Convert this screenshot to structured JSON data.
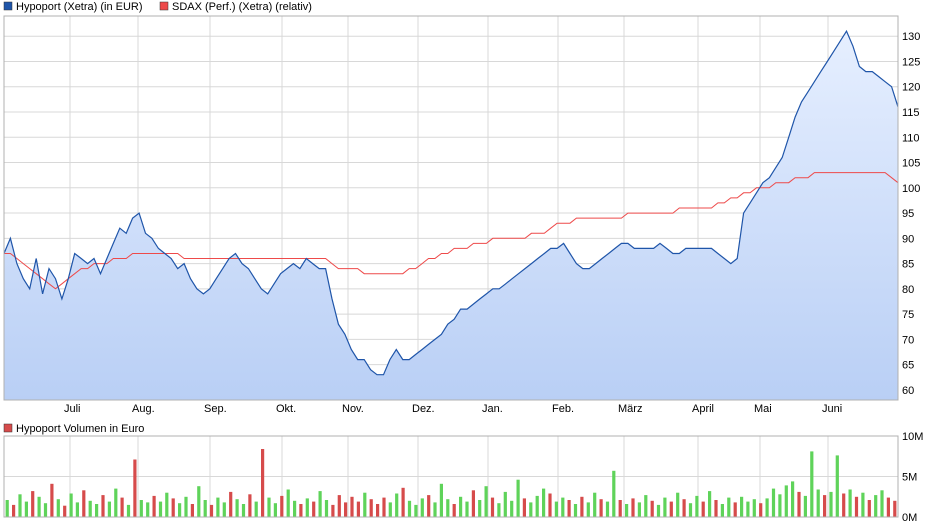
{
  "colors": {
    "primary_line": "#1f55a9",
    "primary_fill_top": "#e6efff",
    "primary_fill_bottom": "#b9cff5",
    "compare_line": "#ee4a4a",
    "volume_up": "#5fd35a",
    "volume_down": "#d64b4b",
    "grid": "#d8d8d8",
    "frame": "#b0b0b0"
  },
  "legend": {
    "primary": "Hypoport (Xetra) (in EUR)",
    "compare": "SDAX (Perf.) (Xetra) (relativ)"
  },
  "volume_legend": "Hypoport Volumen in Euro",
  "chart_data": [
    {
      "type": "line",
      "name": "price",
      "x_labels": [
        "Juli",
        "Aug.",
        "Sep.",
        "Okt.",
        "Nov.",
        "Dez.",
        "Jan.",
        "Feb.",
        "März",
        "April",
        "Mai",
        "Juni"
      ],
      "y_ticks": [
        60,
        65,
        70,
        75,
        80,
        85,
        90,
        95,
        100,
        105,
        110,
        115,
        120,
        125,
        130
      ],
      "ylim": [
        58,
        134
      ],
      "grid": true,
      "legend_position": "top-left",
      "series": [
        {
          "name": "Hypoport (Xetra) (in EUR)",
          "values": [
            87,
            90,
            85,
            82,
            80,
            86,
            79,
            84,
            82,
            78,
            82,
            87,
            86,
            85,
            86,
            83,
            86,
            89,
            92,
            91,
            94,
            95,
            91,
            90,
            88,
            87,
            86,
            84,
            85,
            82,
            80,
            79,
            80,
            82,
            84,
            86,
            87,
            85,
            84,
            82,
            80,
            79,
            81,
            83,
            84,
            85,
            84,
            86,
            85,
            84,
            84,
            78,
            73,
            71,
            68,
            66,
            66,
            64,
            63,
            63,
            66,
            68,
            66,
            66,
            67,
            68,
            69,
            70,
            71,
            73,
            74,
            76,
            76,
            77,
            78,
            79,
            80,
            80,
            81,
            82,
            83,
            84,
            85,
            86,
            87,
            88,
            88,
            89,
            87,
            85,
            84,
            84,
            85,
            86,
            87,
            88,
            89,
            89,
            88,
            88,
            88,
            88,
            89,
            88,
            87,
            87,
            88,
            88,
            88,
            88,
            88,
            87,
            86,
            85,
            86,
            95,
            97,
            99,
            101,
            102,
            104,
            106,
            110,
            114,
            117,
            119,
            121,
            123,
            125,
            127,
            129,
            131,
            128,
            124,
            123,
            123,
            122,
            121,
            120,
            116
          ]
        },
        {
          "name": "SDAX (Perf.) (Xetra) (relativ)",
          "values": [
            87,
            87,
            86,
            85,
            84,
            83,
            82,
            81,
            80,
            81,
            82,
            83,
            84,
            84,
            85,
            85,
            85,
            86,
            86,
            86,
            87,
            87,
            87,
            87,
            87,
            87,
            87,
            87,
            86,
            86,
            86,
            86,
            86,
            86,
            86,
            86,
            86,
            86,
            86,
            86,
            86,
            86,
            86,
            86,
            86,
            86,
            86,
            86,
            86,
            86,
            86,
            85,
            84,
            84,
            84,
            84,
            83,
            83,
            83,
            83,
            83,
            83,
            83,
            84,
            84,
            85,
            86,
            86,
            87,
            87,
            88,
            88,
            88,
            89,
            89,
            89,
            90,
            90,
            90,
            90,
            90,
            90,
            91,
            91,
            91,
            92,
            93,
            93,
            93,
            94,
            94,
            94,
            94,
            94,
            94,
            94,
            94,
            95,
            95,
            95,
            95,
            95,
            95,
            95,
            95,
            96,
            96,
            96,
            96,
            96,
            96,
            97,
            97,
            98,
            98,
            99,
            99,
            100,
            100,
            100,
            101,
            101,
            101,
            102,
            102,
            102,
            103,
            103,
            103,
            103,
            103,
            103,
            103,
            103,
            103,
            103,
            103,
            103,
            102,
            101
          ]
        }
      ]
    },
    {
      "type": "bar",
      "name": "volume",
      "y_ticks": [
        "0M",
        "5M",
        "10M"
      ],
      "ylim": [
        0,
        10
      ],
      "legend_position": "top-left",
      "series": [
        {
          "name": "Hypoport Volumen in Euro",
          "values": [
            2.1,
            1.5,
            2.8,
            1.9,
            3.2,
            2.5,
            1.7,
            4.1,
            2.2,
            1.4,
            2.9,
            1.8,
            3.3,
            2.0,
            1.6,
            2.7,
            1.9,
            3.5,
            2.4,
            1.5,
            7.1,
            2.1,
            1.8,
            2.6,
            1.9,
            3.0,
            2.3,
            1.7,
            2.5,
            1.6,
            3.8,
            2.1,
            1.5,
            2.4,
            1.8,
            3.1,
            2.2,
            1.6,
            2.8,
            1.9,
            8.4,
            2.4,
            1.7,
            2.6,
            3.4,
            2.0,
            1.6,
            2.3,
            1.9,
            3.2,
            2.1,
            1.5,
            2.7,
            1.8,
            2.5,
            1.9,
            3.0,
            2.2,
            1.6,
            2.4,
            1.8,
            2.9,
            3.6,
            2.0,
            1.5,
            2.3,
            2.7,
            1.8,
            4.1,
            2.2,
            1.6,
            2.5,
            1.9,
            3.3,
            2.1,
            3.8,
            2.4,
            1.7,
            3.1,
            2.0,
            4.6,
            2.3,
            1.8,
            2.6,
            3.5,
            2.9,
            1.9,
            2.4,
            2.1,
            1.6,
            2.5,
            1.8,
            3.0,
            2.2,
            1.9,
            5.7,
            2.1,
            1.6,
            2.3,
            1.8,
            2.7,
            2.0,
            1.5,
            2.4,
            1.9,
            3.0,
            2.2,
            1.7,
            2.6,
            1.9,
            3.2,
            2.1,
            1.6,
            2.4,
            1.8,
            2.5,
            1.9,
            2.2,
            1.7,
            2.3,
            3.5,
            2.8,
            3.9,
            4.4,
            3.1,
            2.6,
            8.1,
            3.4,
            2.7,
            3.1,
            7.6,
            2.9,
            3.4,
            2.5,
            3.0,
            2.1,
            2.7,
            3.3,
            2.4,
            2.0
          ]
        }
      ],
      "up_days": [
        1,
        0,
        1,
        1,
        0,
        1,
        1,
        0,
        1,
        0,
        1,
        1,
        0,
        1,
        1,
        0,
        1,
        1,
        0,
        1,
        0,
        1,
        1,
        0,
        1,
        1,
        0,
        1,
        1,
        0,
        1,
        1,
        0,
        1,
        1,
        0,
        1,
        1,
        0,
        1,
        0,
        1,
        1,
        0,
        1,
        1,
        0,
        1,
        0,
        1,
        1,
        0,
        0,
        0,
        0,
        0,
        1,
        0,
        0,
        0,
        1,
        1,
        0,
        1,
        1,
        1,
        0,
        1,
        1,
        1,
        0,
        1,
        1,
        0,
        1,
        1,
        0,
        1,
        1,
        1,
        1,
        0,
        1,
        1,
        1,
        0,
        1,
        1,
        0,
        1,
        0,
        1,
        1,
        0,
        1,
        1,
        0,
        1,
        0,
        1,
        1,
        0,
        1,
        1,
        0,
        1,
        0,
        1,
        1,
        0,
        1,
        0,
        1,
        1,
        0,
        1,
        1,
        1,
        0,
        1,
        1,
        1,
        1,
        1,
        0,
        1,
        1,
        1,
        0,
        1,
        1,
        0,
        1,
        0,
        1,
        0,
        1,
        1,
        0,
        0
      ]
    }
  ]
}
